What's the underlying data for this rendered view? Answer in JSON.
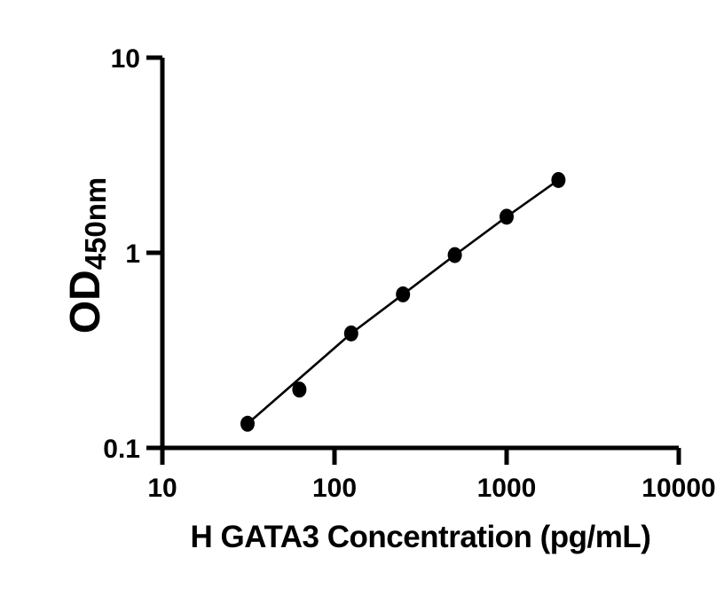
{
  "figure": {
    "background": "#ffffff",
    "foreground": "#000000"
  },
  "chart_data": {
    "type": "scatter",
    "subtype": "elisa-standard-curve",
    "title": "",
    "xlabel": "H GATA3 Concentration (pg/mL)",
    "ylabel_main": "OD",
    "ylabel_sub": "450nm",
    "x_scale": "log10",
    "y_scale": "log10",
    "xlim": [
      10,
      10000
    ],
    "ylim": [
      0.1,
      10
    ],
    "x_ticks": [
      10,
      100,
      1000,
      10000
    ],
    "y_ticks": [
      0.1,
      1,
      10
    ],
    "grid": false,
    "legend": false,
    "marker": "filled-circle",
    "marker_color": "#000000",
    "line_color": "#000000",
    "series": [
      {
        "x": [
          31.25,
          62.5,
          125,
          250,
          500,
          1000,
          2000
        ],
        "od": [
          0.133,
          0.199,
          0.386,
          0.612,
          0.973,
          1.53,
          2.36
        ]
      }
    ]
  }
}
